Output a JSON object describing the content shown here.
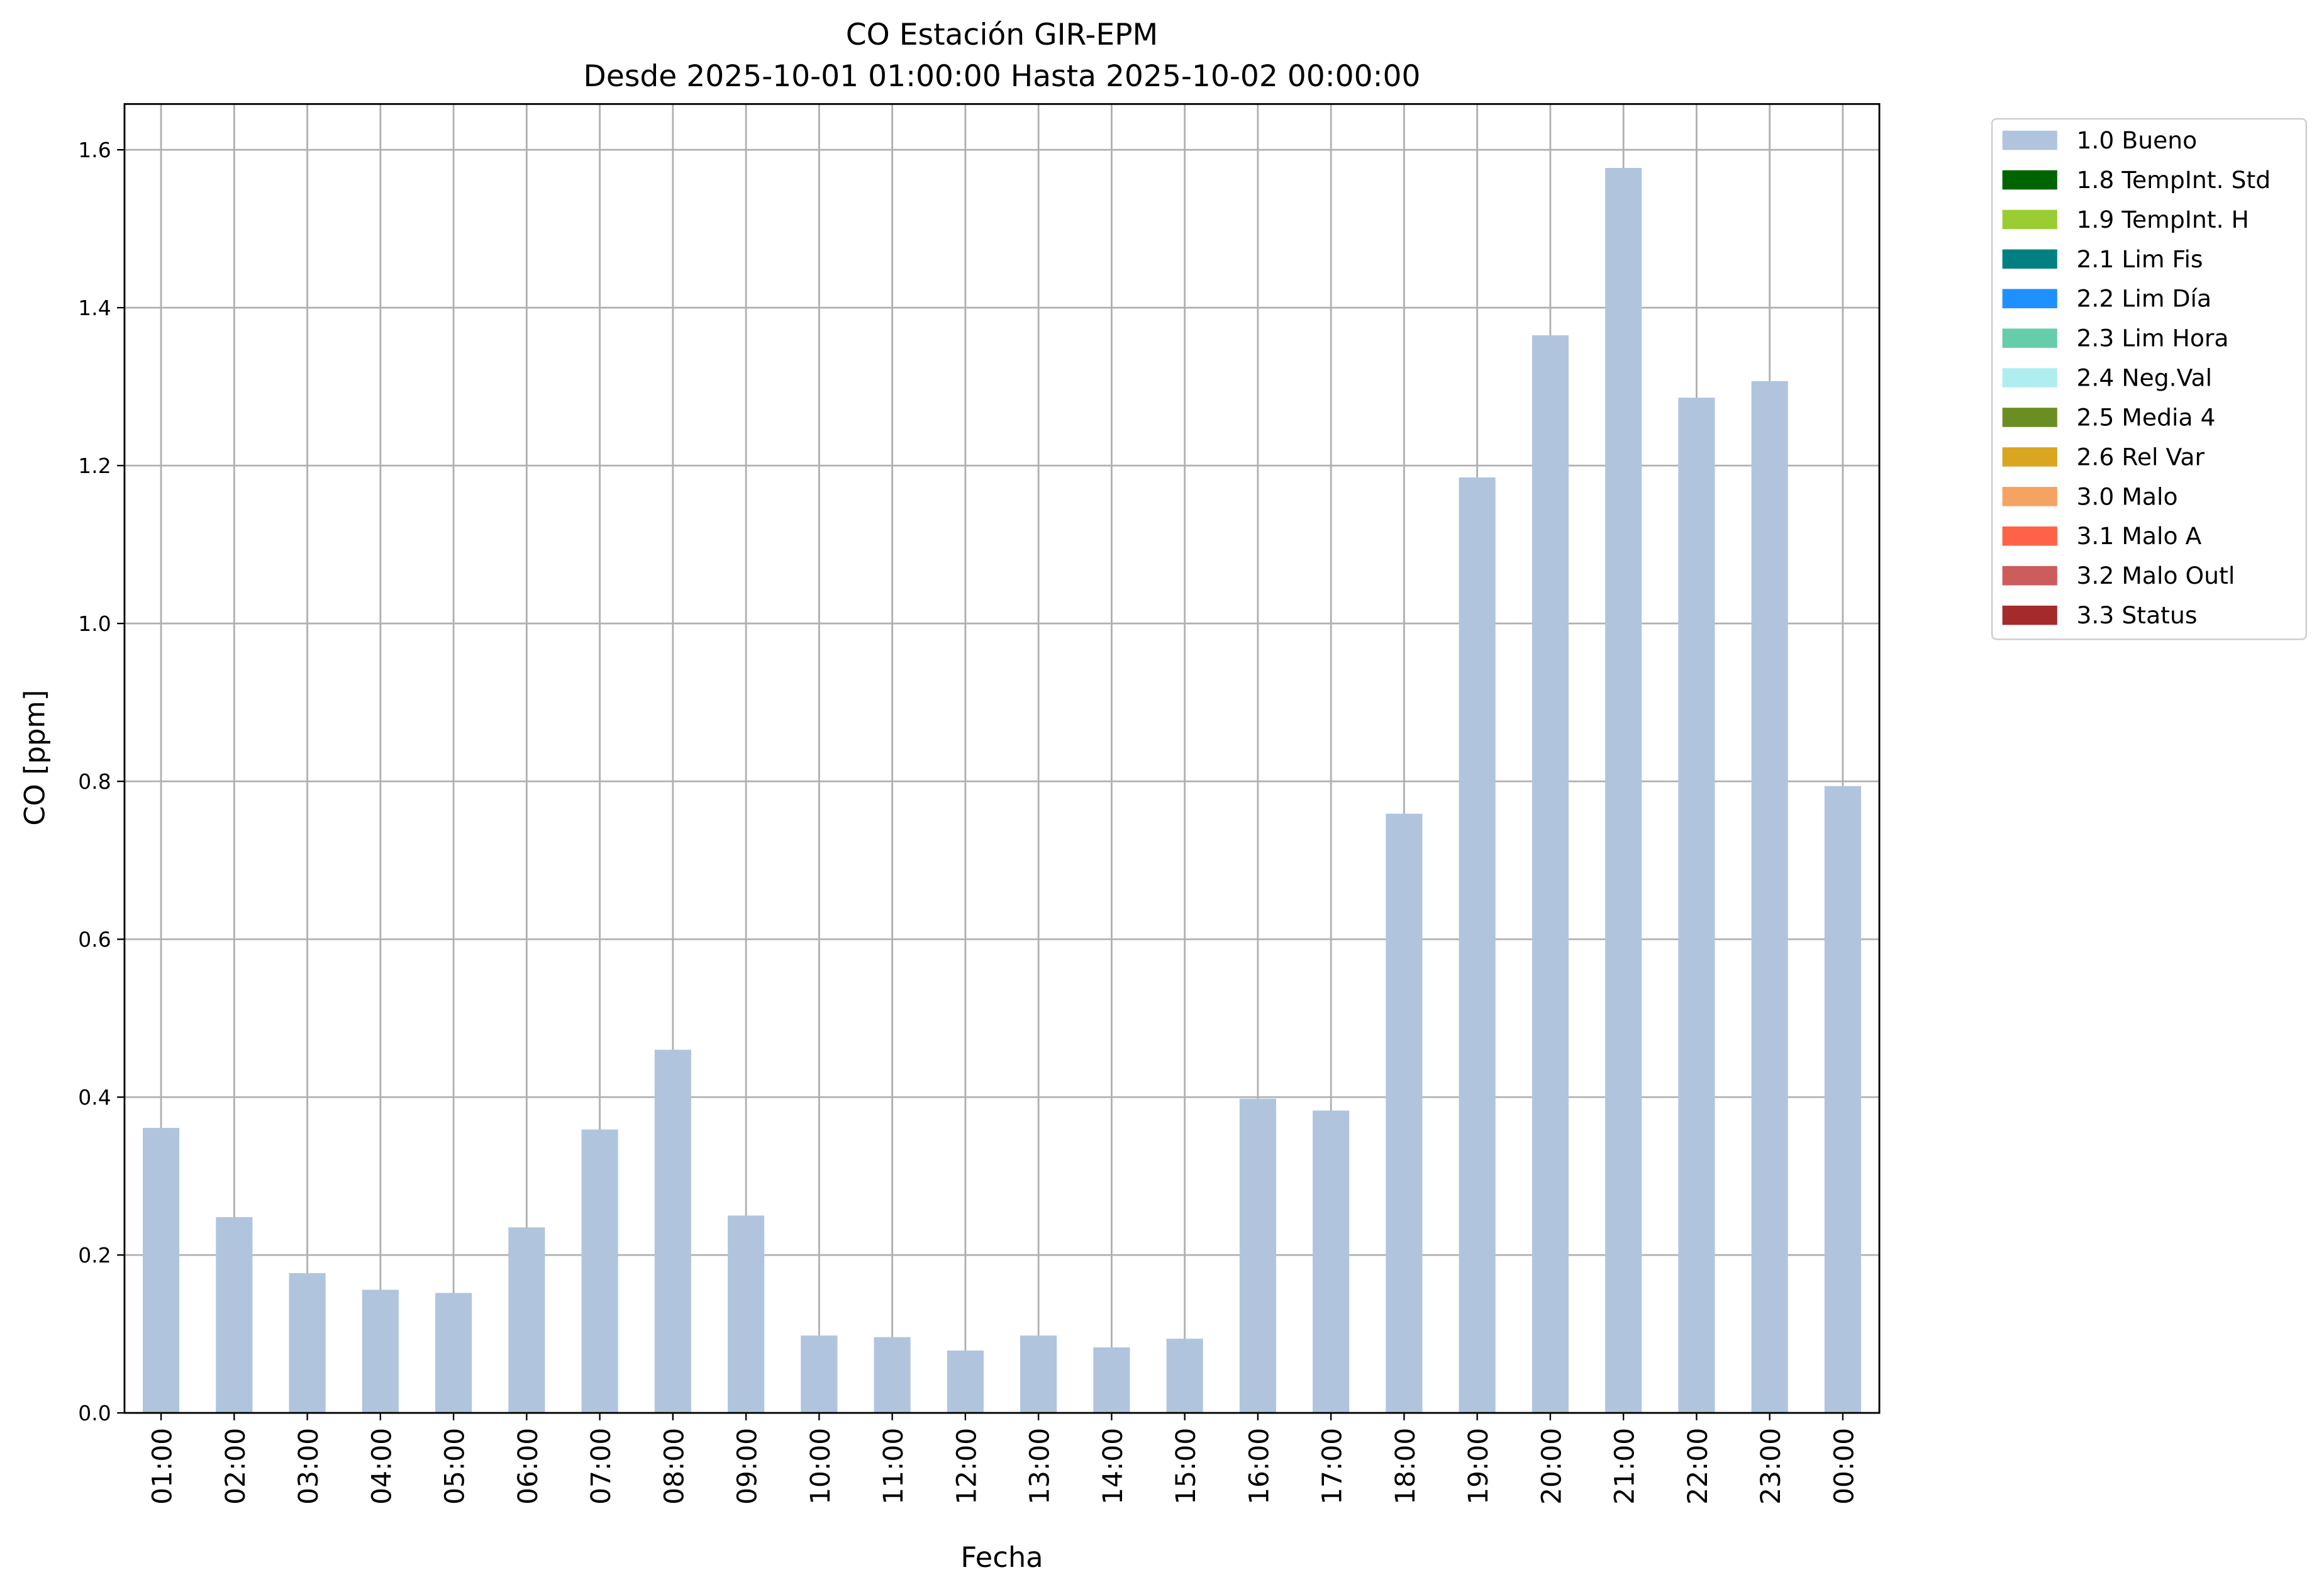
{
  "chart_data": {
    "type": "bar",
    "stacked": true,
    "title": "CO Estación GIR-EPM",
    "subtitle": "Desde 2025-10-01 01:00:00 Hasta 2025-10-02 00:00:00",
    "xlabel": "Fecha",
    "ylabel": "CO [ppm]",
    "categories": [
      "01:00",
      "02:00",
      "03:00",
      "04:00",
      "05:00",
      "06:00",
      "07:00",
      "08:00",
      "09:00",
      "10:00",
      "11:00",
      "12:00",
      "13:00",
      "14:00",
      "15:00",
      "16:00",
      "17:00",
      "18:00",
      "19:00",
      "20:00",
      "21:00",
      "22:00",
      "23:00",
      "00:00"
    ],
    "series": [
      {
        "name": "1.0 Bueno",
        "color": "#b0c4de",
        "values": [
          0.361,
          0.248,
          0.177,
          0.156,
          0.152,
          0.235,
          0.359,
          0.46,
          0.25,
          0.098,
          0.096,
          0.079,
          0.098,
          0.083,
          0.094,
          0.398,
          0.383,
          0.759,
          1.185,
          1.365,
          1.577,
          1.286,
          1.307,
          0.794
        ]
      },
      {
        "name": "1.8 TempInt. Std",
        "color": "#006400",
        "values": [
          0,
          0,
          0,
          0,
          0,
          0,
          0,
          0,
          0,
          0,
          0,
          0,
          0,
          0,
          0,
          0,
          0,
          0,
          0,
          0,
          0,
          0,
          0,
          0
        ]
      },
      {
        "name": "1.9 TempInt. H",
        "color": "#9acd32",
        "values": [
          0,
          0,
          0,
          0,
          0,
          0,
          0,
          0,
          0,
          0,
          0,
          0,
          0,
          0,
          0,
          0,
          0,
          0,
          0,
          0,
          0,
          0,
          0,
          0
        ]
      },
      {
        "name": "2.1 Lim Fis",
        "color": "#008080",
        "values": [
          0,
          0,
          0,
          0,
          0,
          0,
          0,
          0,
          0,
          0,
          0,
          0,
          0,
          0,
          0,
          0,
          0,
          0,
          0,
          0,
          0,
          0,
          0,
          0
        ]
      },
      {
        "name": "2.2 Lim Día",
        "color": "#1e90ff",
        "values": [
          0,
          0,
          0,
          0,
          0,
          0,
          0,
          0,
          0,
          0,
          0,
          0,
          0,
          0,
          0,
          0,
          0,
          0,
          0,
          0,
          0,
          0,
          0,
          0
        ]
      },
      {
        "name": "2.3 Lim Hora",
        "color": "#66cdaa",
        "values": [
          0,
          0,
          0,
          0,
          0,
          0,
          0,
          0,
          0,
          0,
          0,
          0,
          0,
          0,
          0,
          0,
          0,
          0,
          0,
          0,
          0,
          0,
          0,
          0
        ]
      },
      {
        "name": "2.4 Neg.Val",
        "color": "#afeeee",
        "values": [
          0,
          0,
          0,
          0,
          0,
          0,
          0,
          0,
          0,
          0,
          0,
          0,
          0,
          0,
          0,
          0,
          0,
          0,
          0,
          0,
          0,
          0,
          0,
          0
        ]
      },
      {
        "name": "2.5 Media 4",
        "color": "#6b8e23",
        "values": [
          0,
          0,
          0,
          0,
          0,
          0,
          0,
          0,
          0,
          0,
          0,
          0,
          0,
          0,
          0,
          0,
          0,
          0,
          0,
          0,
          0,
          0,
          0,
          0
        ]
      },
      {
        "name": "2.6 Rel Var",
        "color": "#daa520",
        "values": [
          0,
          0,
          0,
          0,
          0,
          0,
          0,
          0,
          0,
          0,
          0,
          0,
          0,
          0,
          0,
          0,
          0,
          0,
          0,
          0,
          0,
          0,
          0,
          0
        ]
      },
      {
        "name": "3.0 Malo",
        "color": "#f4a460",
        "values": [
          0,
          0,
          0,
          0,
          0,
          0,
          0,
          0,
          0,
          0,
          0,
          0,
          0,
          0,
          0,
          0,
          0,
          0,
          0,
          0,
          0,
          0,
          0,
          0
        ]
      },
      {
        "name": "3.1 Malo A",
        "color": "#ff6347",
        "values": [
          0,
          0,
          0,
          0,
          0,
          0,
          0,
          0,
          0,
          0,
          0,
          0,
          0,
          0,
          0,
          0,
          0,
          0,
          0,
          0,
          0,
          0,
          0,
          0
        ]
      },
      {
        "name": "3.2 Malo Outl",
        "color": "#cd5c5c",
        "values": [
          0,
          0,
          0,
          0,
          0,
          0,
          0,
          0,
          0,
          0,
          0,
          0,
          0,
          0,
          0,
          0,
          0,
          0,
          0,
          0,
          0,
          0,
          0,
          0
        ]
      },
      {
        "name": "3.3 Status",
        "color": "#a52a2a",
        "values": [
          0,
          0,
          0,
          0,
          0,
          0,
          0,
          0,
          0,
          0,
          0,
          0,
          0,
          0,
          0,
          0,
          0,
          0,
          0,
          0,
          0,
          0,
          0,
          0
        ]
      }
    ],
    "ylim": [
      0,
      1.658
    ],
    "yticks": [
      {
        "value": 0,
        "label": "0.0"
      },
      {
        "value": 0.2,
        "label": "0.2"
      },
      {
        "value": 0.4,
        "label": "0.4"
      },
      {
        "value": 0.6,
        "label": "0.6"
      },
      {
        "value": 0.8,
        "label": "0.8"
      },
      {
        "value": 1,
        "label": "1.0"
      },
      {
        "value": 1.2,
        "label": "1.2"
      },
      {
        "value": 1.4,
        "label": "1.4"
      },
      {
        "value": 1.6,
        "label": "1.6"
      }
    ],
    "grid": true,
    "legend": "outside upper right"
  }
}
